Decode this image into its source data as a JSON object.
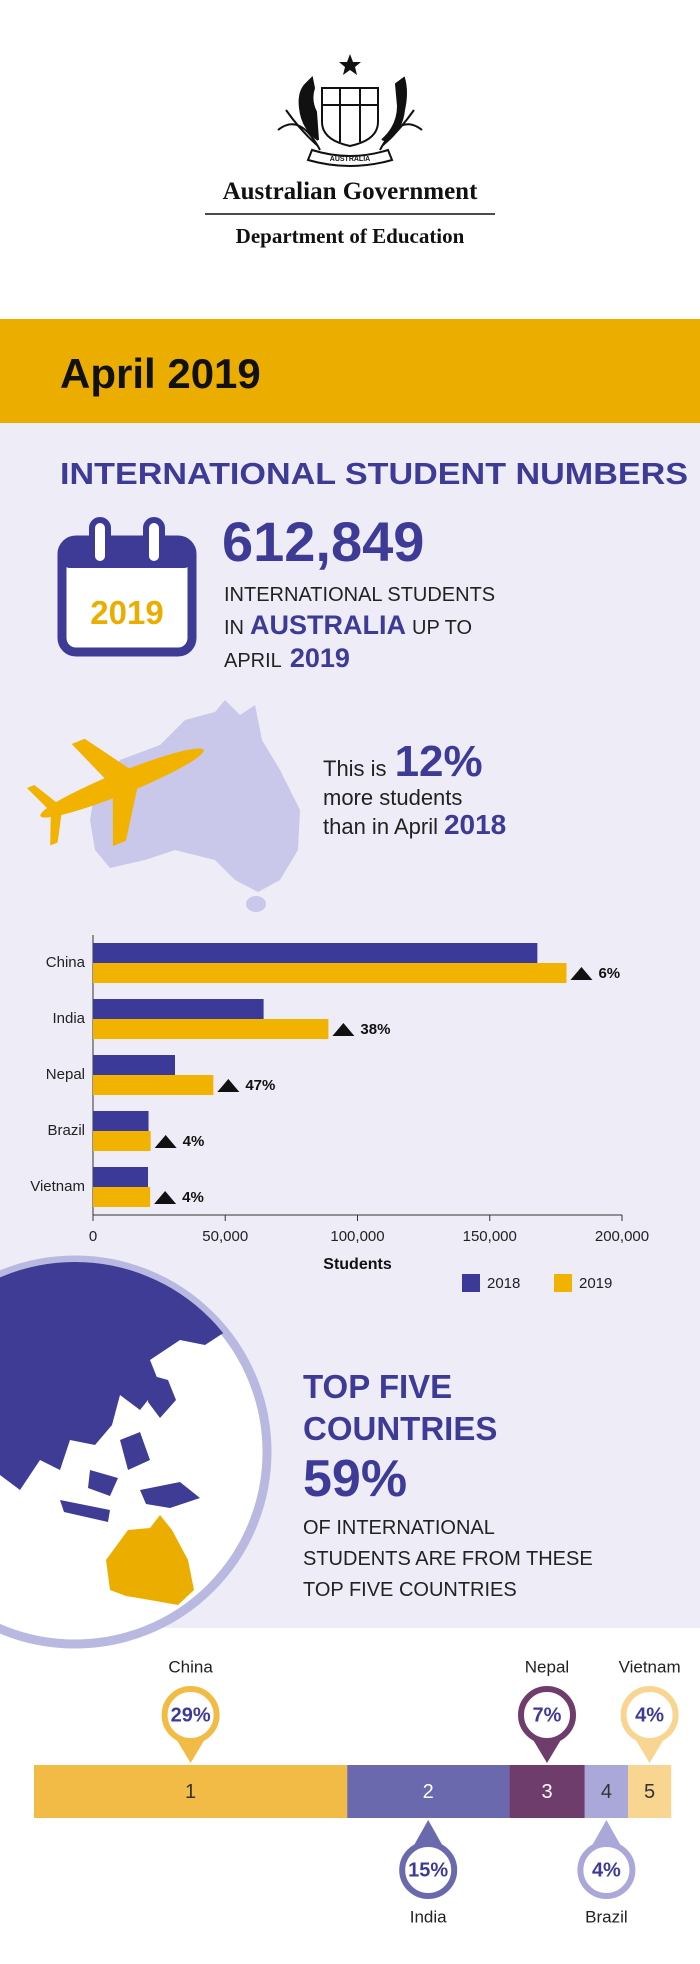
{
  "header": {
    "org": "Australian Government",
    "department": "Department of Education",
    "emblem_motto": "AUSTRALIA"
  },
  "banner": "April 2019",
  "section_title": "INTERNATIONAL STUDENT NUMBERS",
  "calendar_year": "2019",
  "total": "612,849",
  "total_text": {
    "line1": "INTERNATIONAL STUDENTS",
    "line2_start": "IN",
    "line2_bold": "AUSTRALIA",
    "line2_end": "UP TO",
    "line3_start": "APRIL",
    "line3_bold": "2019"
  },
  "growth": {
    "intro": "This is",
    "percent": "12%",
    "line2": "more students",
    "line3": "than in April",
    "year": "2018"
  },
  "top_five": {
    "title_lines": [
      "TOP FIVE",
      "COUNTRIES"
    ],
    "share": "59%",
    "lines": [
      "OF INTERNATIONAL",
      "STUDENTS ARE FROM THESE",
      "TOP FIVE COUNTRIES"
    ]
  },
  "chart_data": [
    {
      "type": "hbar",
      "categories": [
        "China",
        "India",
        "Nepal",
        "Brazil",
        "Vietnam"
      ],
      "series": [
        {
          "name": "2018",
          "color": "#3b3a98",
          "values": [
            168000,
            64500,
            31000,
            21000,
            20800
          ]
        },
        {
          "name": "2019",
          "color": "#f2b200",
          "values": [
            179000,
            89000,
            45500,
            21800,
            21600
          ]
        }
      ],
      "annotations": [
        "6%",
        "38%",
        "47%",
        "4%",
        "4%"
      ],
      "xlabel": "Students",
      "xlim": [
        0,
        200000
      ],
      "xticks": [
        0,
        {
          "value": 50000,
          "label": "50,000"
        },
        {
          "value": 100000,
          "label": "100,000"
        },
        {
          "value": 150000,
          "label": "150,000"
        },
        {
          "value": 200000,
          "label": "200,000"
        }
      ],
      "legend": "bottom-right"
    },
    {
      "type": "share",
      "categories": [
        "China",
        "India",
        "Nepal",
        "Brazil",
        "Vietnam"
      ],
      "ranks": [
        1,
        2,
        3,
        4,
        5
      ],
      "values": [
        29,
        15,
        7,
        4,
        4
      ],
      "value_labels": [
        "29%",
        "15%",
        "7%",
        "4%",
        "4%"
      ],
      "colors": [
        "#f2bb45",
        "#6a69ad",
        "#6e3d6b",
        "#a9a8d8",
        "#f8d590"
      ]
    }
  ]
}
